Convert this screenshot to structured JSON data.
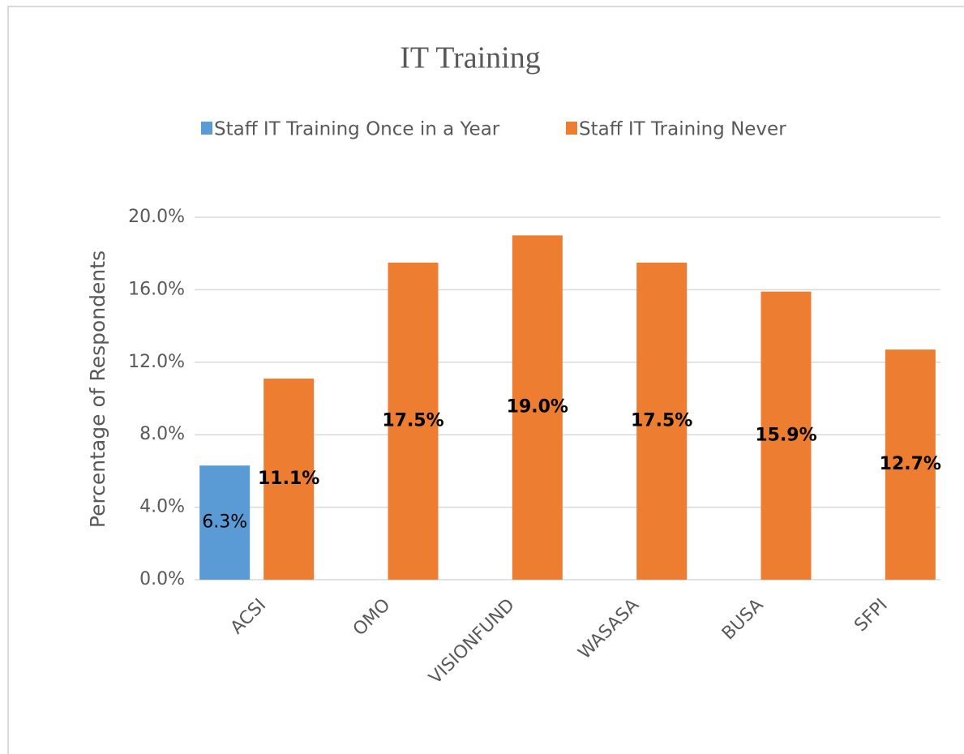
{
  "chart_data": {
    "type": "bar",
    "title": "IT Training",
    "categories": [
      "ACSI",
      "OMO",
      "VISIONFUND",
      "WASASA",
      "BUSA",
      "SFPI"
    ],
    "series": [
      {
        "name": "Staff IT Training Once in a Year",
        "color": "#5b9bd5",
        "values": [
          6.3,
          null,
          null,
          null,
          null,
          null
        ],
        "value_labels": [
          "6.3%",
          null,
          null,
          null,
          null,
          null
        ]
      },
      {
        "name": "Staff IT Training Never",
        "color": "#ed7d31",
        "values": [
          11.1,
          17.5,
          19.0,
          17.5,
          15.9,
          12.7
        ],
        "value_labels": [
          "11.1%",
          "17.5%",
          "19.0%",
          "17.5%",
          "15.9%",
          "12.7%"
        ]
      }
    ],
    "y_label": "Percentage of Respondents",
    "ylim": [
      0,
      20
    ],
    "yticks": [
      {
        "value": 0,
        "label": "0.0%"
      },
      {
        "value": 4,
        "label": "4.0%"
      },
      {
        "value": 8,
        "label": "8.0%"
      },
      {
        "value": 12,
        "label": "12.0%"
      },
      {
        "value": 16,
        "label": "16.0%"
      },
      {
        "value": 20,
        "label": "20.0%"
      }
    ],
    "grid": true,
    "legend": "top"
  }
}
